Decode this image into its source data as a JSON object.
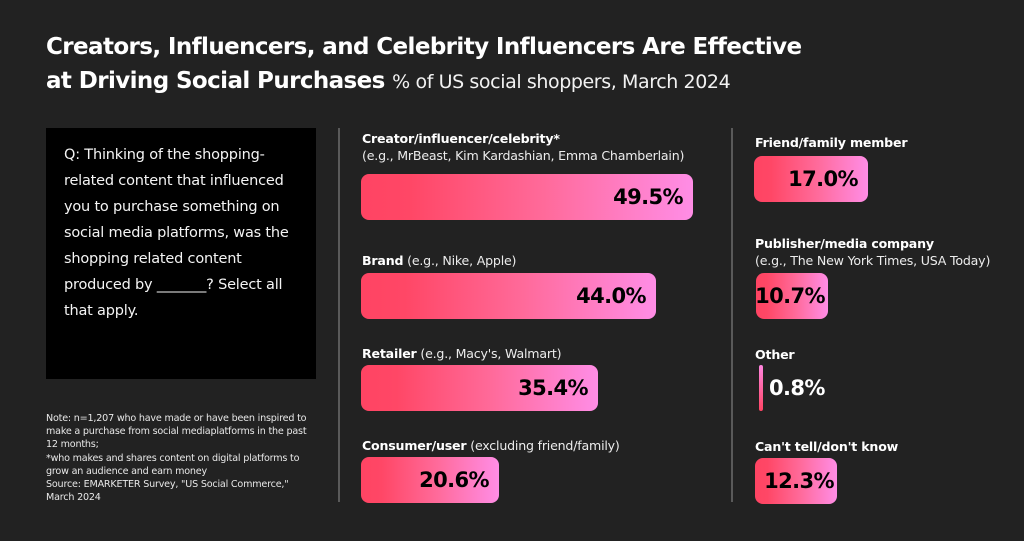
{
  "title": {
    "main_line1": "Creators, Influencers, and Celebrity Influencers Are Effective",
    "main_line2": "at Driving Social Purchases",
    "subtitle": "% of US social shoppers, March 2024"
  },
  "question": "Q: Thinking of the shopping-related content that influenced you to purchase something on social media platforms, was the shopping related content produced by _______? Select all that apply.",
  "note": {
    "line1": "Note: n=1,207 who have made or have been inspired to make a purchase from social mediaplatforms in the past 12 months;",
    "line2": "*who makes and shares content on digital platforms to grow an audience and earn money",
    "line3": "Source: EMARKETER Survey, \"US Social Commerce,\" March 2024"
  },
  "colors": {
    "background": "#222222",
    "bar_start": "#ff4463",
    "bar_end": "#ff8de6",
    "question_box": "#000000"
  },
  "chart_data": {
    "type": "bar",
    "orientation": "horizontal",
    "title": "Creators, Influencers, and Celebrity Influencers Are Effective at Driving Social Purchases",
    "subtitle": "% of US social shoppers, March 2024",
    "unit": "%",
    "categories": [
      "Creator/influencer/celebrity*",
      "Brand",
      "Retailer",
      "Consumer/user",
      "Friend/family member",
      "Publisher/media company",
      "Other",
      "Can't tell/don't know"
    ],
    "examples": [
      "(e.g., MrBeast, Kim Kardashian, Emma Chamberlain)",
      "(e.g., Nike, Apple)",
      "(e.g., Macy's, Walmart)",
      "(excluding friend/family)",
      "",
      "(e.g., The New York Times, USA Today)",
      "",
      ""
    ],
    "values": [
      49.5,
      44.0,
      35.4,
      20.6,
      17.0,
      10.7,
      0.8,
      12.3
    ],
    "value_labels": [
      "49.5%",
      "44.0%",
      "35.4%",
      "20.6%",
      "17.0%",
      "10.7%",
      "0.8%",
      "12.3%"
    ],
    "xlim": [
      0,
      49.5
    ],
    "grid": false,
    "legend": "none"
  }
}
